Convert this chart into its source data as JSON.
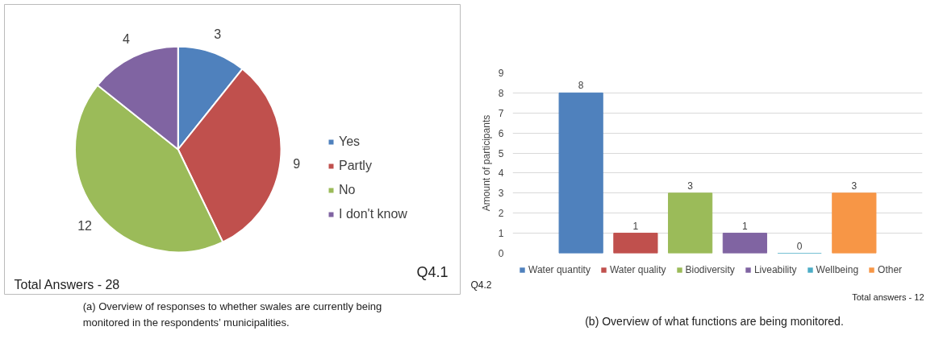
{
  "chart_data": [
    {
      "type": "pie",
      "categories": [
        "Yes",
        "Partly",
        "No",
        "I don't know"
      ],
      "values": [
        3,
        9,
        12,
        4
      ],
      "colors": [
        "#4f81bd",
        "#c0504d",
        "#9bbb59",
        "#8064a2"
      ],
      "data_labels": true,
      "legend": "right",
      "annotations": [
        "Total Answers - 28",
        "Q4.1",
        "(a) Overview of responses to whether swales are currently being monitored in the respondents’ municipalities."
      ]
    },
    {
      "type": "bar",
      "categories": [
        null
      ],
      "ylabel": "Amount of participants",
      "ylim": [
        0,
        9
      ],
      "yticks": [
        0,
        1,
        2,
        3,
        4,
        5,
        6,
        7,
        8,
        9
      ],
      "grid": "y",
      "legend": "bottom",
      "data_labels": true,
      "series": [
        {
          "name": "Water quantity",
          "color": "#4f81bd",
          "values": [
            8
          ]
        },
        {
          "name": "Water quality",
          "color": "#c0504d",
          "values": [
            1
          ]
        },
        {
          "name": "Biodiversity",
          "color": "#9bbb59",
          "values": [
            3
          ]
        },
        {
          "name": "Liveability",
          "color": "#8064a2",
          "values": [
            1
          ]
        },
        {
          "name": "Wellbeing",
          "color": "#4bacc6",
          "values": [
            0
          ]
        },
        {
          "name": "Other",
          "color": "#f79646",
          "values": [
            3
          ]
        }
      ],
      "annotations": [
        "Q4.2",
        "Total answers - 12",
        "(b) Overview of what functions are being monitored."
      ]
    }
  ]
}
